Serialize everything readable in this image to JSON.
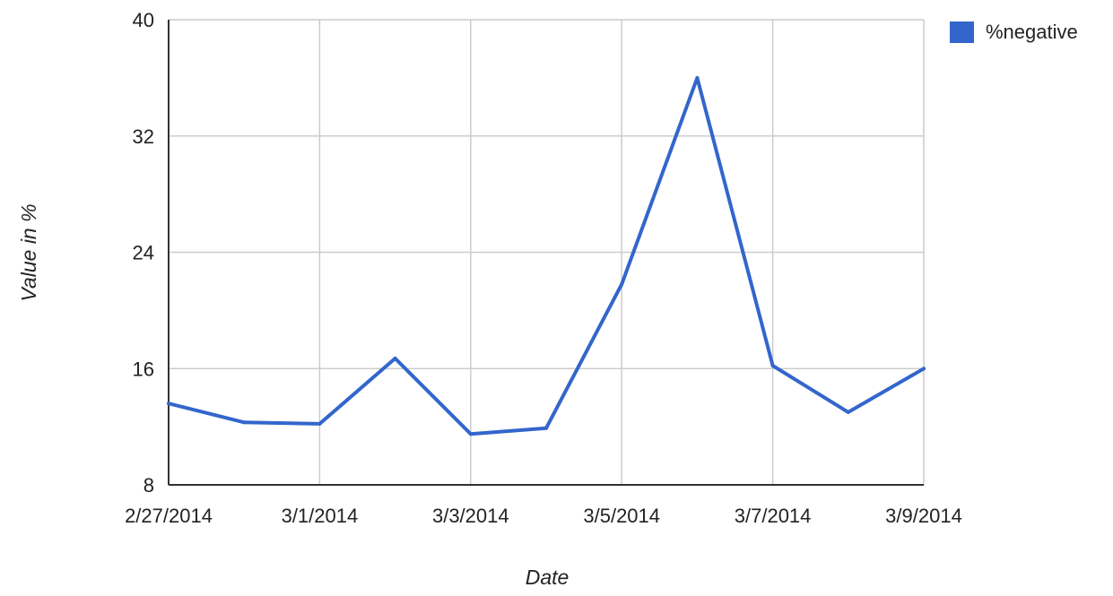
{
  "chart_data": {
    "type": "line",
    "title": "",
    "xlabel": "Date",
    "ylabel": "Value in %",
    "x": [
      "2/27/2014",
      "2/28/2014",
      "3/1/2014",
      "3/2/2014",
      "3/3/2014",
      "3/4/2014",
      "3/5/2014",
      "3/6/2014",
      "3/7/2014",
      "3/8/2014",
      "3/9/2014"
    ],
    "x_tick_labels": [
      "2/27/2014",
      "3/1/2014",
      "3/3/2014",
      "3/5/2014",
      "3/7/2014",
      "3/9/2014"
    ],
    "ylim": [
      8,
      40
    ],
    "y_ticks": [
      8,
      16,
      24,
      32,
      40
    ],
    "series": [
      {
        "name": "%negative",
        "color": "#3366cc",
        "values": [
          13.6,
          12.3,
          12.2,
          16.7,
          11.5,
          11.9,
          21.8,
          36.0,
          16.2,
          13.0,
          16.0
        ]
      }
    ],
    "grid": true,
    "legend_position": "top-right"
  }
}
